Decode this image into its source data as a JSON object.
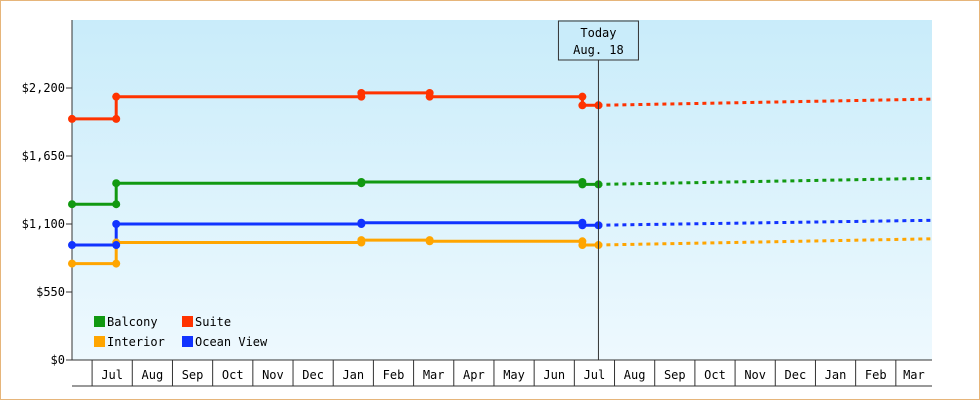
{
  "chart_data": {
    "type": "line",
    "title": "",
    "xlabel": "",
    "ylabel": "",
    "y_ticks": [
      "$0",
      "$550",
      "$1,100",
      "$1,650",
      "$2,200"
    ],
    "ylim": [
      0,
      2750
    ],
    "x_tick_labels": [
      "Jul",
      "Aug",
      "Sep",
      "Oct",
      "Nov",
      "Dec",
      "Jan",
      "Feb",
      "Mar",
      "Apr",
      "May",
      "Jun",
      "Jul",
      "Aug",
      "Sep",
      "Oct",
      "Nov",
      "Dec",
      "Jan",
      "Feb",
      "Mar"
    ],
    "today_label": [
      "Today",
      "Aug. 18"
    ],
    "legend_position": "bottom-left",
    "series": [
      {
        "name": "Balcony",
        "color": "#119911",
        "history": [
          [
            0,
            1260
          ],
          [
            1.1,
            1260
          ],
          [
            1.1,
            1430
          ],
          [
            7.2,
            1430
          ],
          [
            7.2,
            1440
          ],
          [
            12.7,
            1440
          ],
          [
            12.7,
            1420
          ],
          [
            13.1,
            1420
          ]
        ],
        "forecast": [
          [
            13.1,
            1420
          ],
          [
            21.4,
            1470
          ]
        ]
      },
      {
        "name": "Suite",
        "color": "#ff3300",
        "history": [
          [
            0,
            1950
          ],
          [
            1.1,
            1950
          ],
          [
            1.1,
            2130
          ],
          [
            7.2,
            2130
          ],
          [
            7.2,
            2160
          ],
          [
            8.9,
            2160
          ],
          [
            8.9,
            2130
          ],
          [
            12.7,
            2130
          ],
          [
            12.7,
            2060
          ],
          [
            13.1,
            2060
          ]
        ],
        "forecast": [
          [
            13.1,
            2060
          ],
          [
            21.4,
            2110
          ]
        ]
      },
      {
        "name": "Interior",
        "color": "#ffa500",
        "history": [
          [
            0,
            780
          ],
          [
            1.1,
            780
          ],
          [
            1.1,
            950
          ],
          [
            7.2,
            950
          ],
          [
            7.2,
            970
          ],
          [
            8.9,
            970
          ],
          [
            8.9,
            960
          ],
          [
            12.7,
            960
          ],
          [
            12.7,
            930
          ],
          [
            13.1,
            930
          ]
        ],
        "forecast": [
          [
            13.1,
            930
          ],
          [
            21.4,
            980
          ]
        ]
      },
      {
        "name": "Ocean View",
        "color": "#1133ff",
        "history": [
          [
            0,
            930
          ],
          [
            1.1,
            930
          ],
          [
            1.1,
            1100
          ],
          [
            7.2,
            1100
          ],
          [
            7.2,
            1110
          ],
          [
            12.7,
            1110
          ],
          [
            12.7,
            1090
          ],
          [
            13.1,
            1090
          ]
        ],
        "forecast": [
          [
            13.1,
            1090
          ],
          [
            21.4,
            1130
          ]
        ]
      }
    ],
    "markers": {
      "Balcony": [
        [
          0,
          1260
        ],
        [
          1.1,
          1260
        ],
        [
          1.1,
          1430
        ],
        [
          7.2,
          1430
        ],
        [
          7.2,
          1440
        ],
        [
          12.7,
          1440
        ],
        [
          12.7,
          1420
        ],
        [
          13.1,
          1420
        ]
      ],
      "Suite": [
        [
          0,
          1950
        ],
        [
          1.1,
          1950
        ],
        [
          1.1,
          2130
        ],
        [
          7.2,
          2130
        ],
        [
          7.2,
          2160
        ],
        [
          8.9,
          2160
        ],
        [
          8.9,
          2130
        ],
        [
          12.7,
          2130
        ],
        [
          12.7,
          2060
        ],
        [
          13.1,
          2060
        ]
      ],
      "Interior": [
        [
          0,
          780
        ],
        [
          1.1,
          780
        ],
        [
          1.1,
          950
        ],
        [
          7.2,
          950
        ],
        [
          7.2,
          970
        ],
        [
          8.9,
          970
        ],
        [
          8.9,
          960
        ],
        [
          12.7,
          960
        ],
        [
          12.7,
          930
        ],
        [
          13.1,
          930
        ]
      ],
      "Ocean View": [
        [
          0,
          930
        ],
        [
          1.1,
          930
        ],
        [
          1.1,
          1100
        ],
        [
          7.2,
          1100
        ],
        [
          7.2,
          1110
        ],
        [
          12.7,
          1110
        ],
        [
          12.7,
          1090
        ],
        [
          13.1,
          1090
        ]
      ]
    },
    "legend": [
      "Balcony",
      "Suite",
      "Interior",
      "Ocean View"
    ]
  }
}
